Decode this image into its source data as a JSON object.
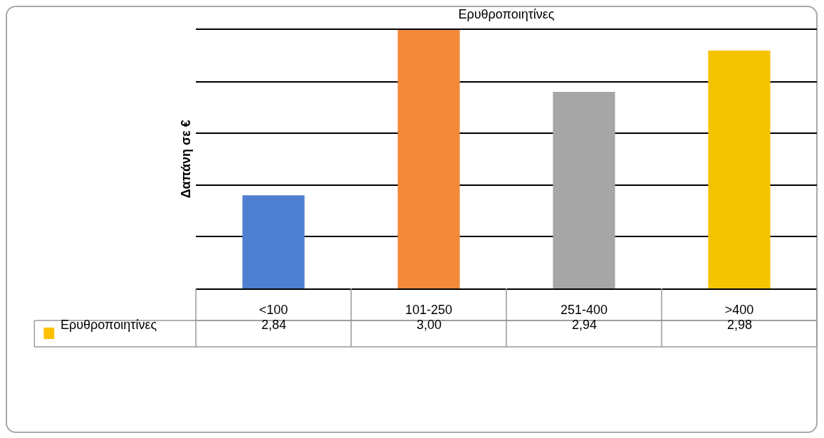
{
  "chart_data": {
    "type": "bar",
    "title": "Ερυθροποιητίνες",
    "ylabel": "Δαπάνη σε €",
    "categories": [
      "<100",
      "101-250",
      "251-400",
      ">400"
    ],
    "series": [
      {
        "name": "Ερυθροποιητίνες",
        "color": "#ffc000",
        "colors": [
          "#4f7fd0",
          "#f28a3a",
          "#a6a6a6",
          "#f5c400"
        ],
        "values": [
          2.84,
          3.0,
          2.94,
          2.98
        ],
        "value_labels": [
          "2,84",
          "3,00",
          "2,94",
          "2,98"
        ]
      }
    ],
    "ylim": [
      2.75,
      3.0
    ],
    "grid": "y",
    "tick_labels": "x",
    "legend": "bottom left"
  }
}
